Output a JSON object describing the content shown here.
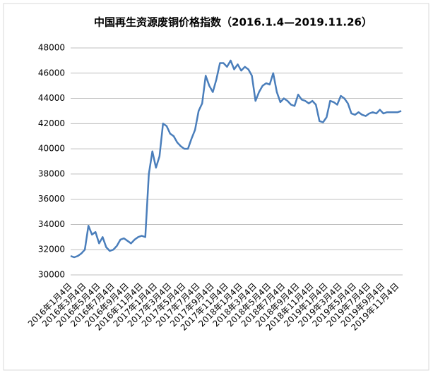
{
  "chart_data": {
    "type": "line",
    "title": "中国再生资源废铜价格指数（2016.1.4—2019.11.26）",
    "categories": [
      "2016年1月4日",
      null,
      null,
      null,
      "2016年3月4日",
      null,
      null,
      null,
      "2016年5月4日",
      null,
      null,
      null,
      "2016年7月4日",
      null,
      null,
      null,
      "2016年9月4日",
      null,
      null,
      null,
      "2016年11月4日",
      null,
      null,
      null,
      "2017年1月4日",
      null,
      null,
      null,
      "2017年3月4日",
      null,
      null,
      null,
      "2017年5月4日",
      null,
      null,
      null,
      "2017年7月4日",
      null,
      null,
      null,
      "2017年9月4日",
      null,
      null,
      null,
      "2017年11月4日",
      null,
      null,
      null,
      "2018年1月4日",
      null,
      null,
      null,
      "2018年3月4日",
      null,
      null,
      null,
      "2018年5月4日",
      null,
      null,
      null,
      "2018年7月4日",
      null,
      null,
      null,
      "2018年9月4日",
      null,
      null,
      null,
      "2018年11月4日",
      null,
      null,
      null,
      "2019年1月4日",
      null,
      null,
      null,
      "2019年3月4日",
      null,
      null,
      null,
      "2019年5月4日",
      null,
      null,
      null,
      "2019年7月4日",
      null,
      null,
      null,
      "2019年9月4日",
      null,
      null,
      null,
      "2019年11月4日",
      null
    ],
    "series": [
      {
        "color": "#4a7ebb",
        "values": [
          31500,
          31400,
          31500,
          31700,
          32000,
          33900,
          33200,
          33400,
          32500,
          33000,
          32200,
          31900,
          32000,
          32300,
          32800,
          32900,
          32700,
          32500,
          32800,
          33000,
          33100,
          33000,
          38000,
          39800,
          38500,
          39400,
          42000,
          41800,
          41200,
          41000,
          40500,
          40200,
          40000,
          40000,
          40800,
          41500,
          43000,
          43600,
          45800,
          45000,
          44500,
          45500,
          46800,
          46800,
          46500,
          47000,
          46300,
          46700,
          46200,
          46500,
          46300,
          45800,
          43800,
          44500,
          45000,
          45200,
          45100,
          46000,
          44500,
          43700,
          44000,
          43800,
          43500,
          43400,
          44300,
          43900,
          43800,
          43600,
          43800,
          43500,
          42200,
          42100,
          42500,
          43800,
          43700,
          43500,
          44200,
          44000,
          43600,
          42800,
          42700,
          42900,
          42700,
          42600,
          42800,
          42900,
          42800,
          43100,
          42800,
          42900,
          42900,
          42900,
          42900,
          43000
        ]
      }
    ],
    "ylim": [
      30000,
      48000
    ],
    "yticks": [
      30000,
      32000,
      34000,
      36000,
      38000,
      40000,
      42000,
      44000,
      46000,
      48000
    ],
    "grid": true
  }
}
